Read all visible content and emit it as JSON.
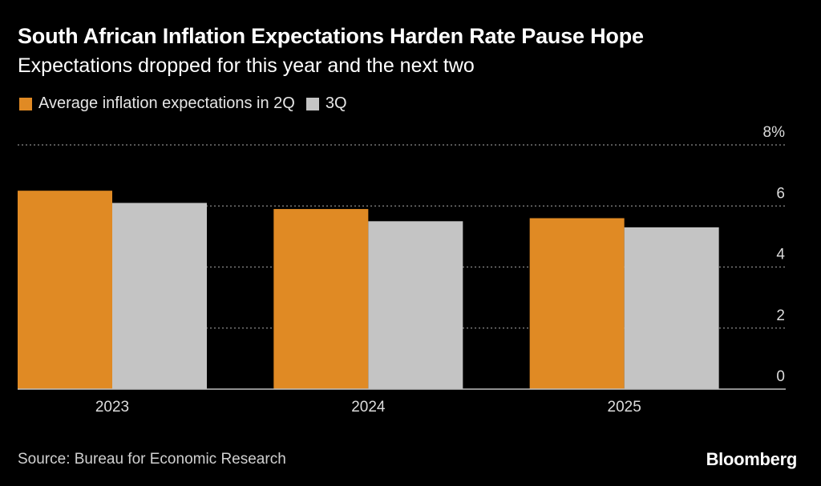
{
  "title": "South African Inflation Expectations Harden Rate Pause Hope",
  "subtitle": "Expectations dropped for this year and the next two",
  "source": "Source: Bureau for Economic Research",
  "brand": "Bloomberg",
  "colors": {
    "q2": "#E08A24",
    "q3": "#C4C4C4",
    "grid": "#8a8a8a",
    "axis": "#bfbfbf"
  },
  "chart_data": {
    "type": "bar",
    "categories": [
      "2023",
      "2024",
      "2025"
    ],
    "series": [
      {
        "name": "Average inflation expectations in 2Q",
        "values": [
          6.5,
          5.9,
          5.6
        ]
      },
      {
        "name": "3Q",
        "values": [
          6.1,
          5.5,
          5.3
        ]
      }
    ],
    "y_ticks": [
      "0",
      "2",
      "4",
      "6",
      "8%"
    ],
    "ylim": [
      0,
      8
    ],
    "grid": true,
    "legend_position": "top-left"
  }
}
